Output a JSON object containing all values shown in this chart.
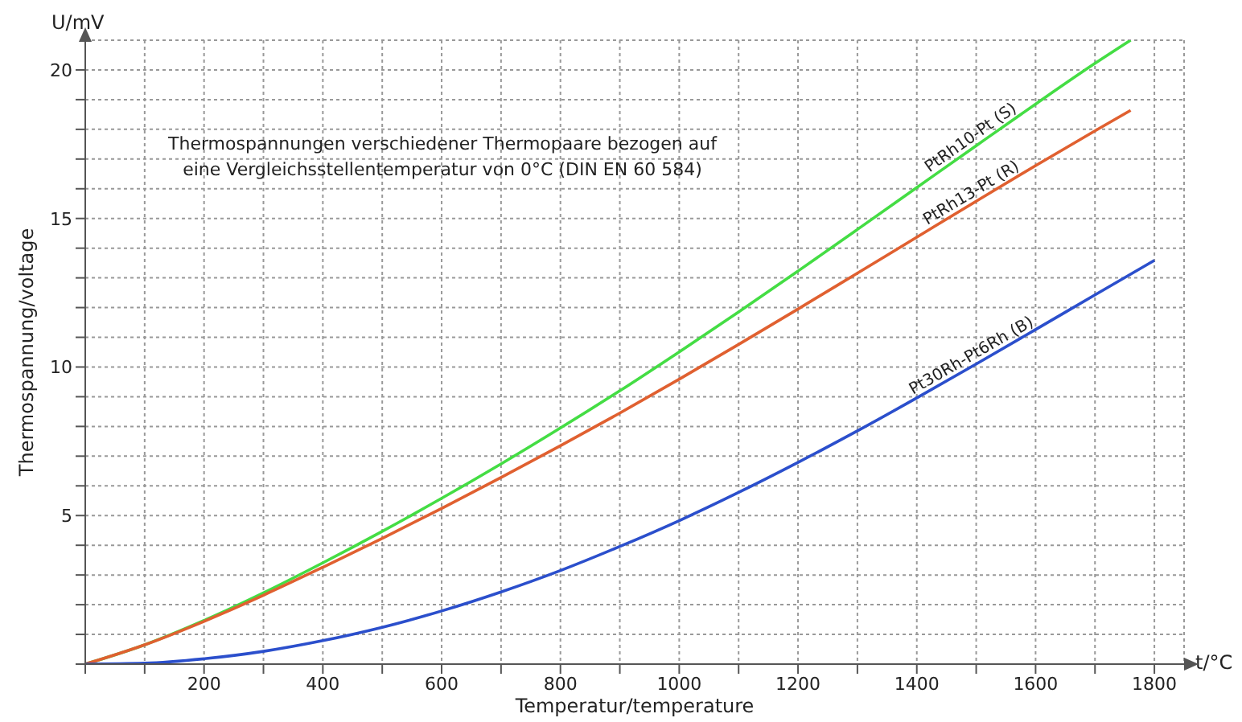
{
  "chart_data": {
    "type": "line",
    "xlabel": "Temperatur/temperature",
    "ylabel": "Thermospannung/voltage",
    "annotations": [
      "Thermospannungen verschiedener Thermopaare bezogen auf eine Vergleichsstellentemperatur von 0°C (DIN EN 60 584)",
      "U/mV",
      "t/°C"
    ],
    "xlim": [
      0,
      1850
    ],
    "ylim": [
      0,
      21
    ],
    "xticks": [
      {
        "value": 0,
        "label": null
      },
      {
        "value": 100,
        "label": null
      },
      200,
      {
        "value": 300,
        "label": null
      },
      400,
      {
        "value": 500,
        "label": null
      },
      600,
      {
        "value": 700,
        "label": null
      },
      800,
      {
        "value": 900,
        "label": null
      },
      1000,
      {
        "value": 1100,
        "label": null
      },
      1200,
      {
        "value": 1300,
        "label": null
      },
      1400,
      {
        "value": 1500,
        "label": null
      },
      1600,
      {
        "value": 1700,
        "label": null
      },
      1800
    ],
    "yticks": [
      {
        "value": 0,
        "label": null
      },
      {
        "value": 1,
        "label": null
      },
      {
        "value": 2,
        "label": null
      },
      {
        "value": 3,
        "label": null
      },
      {
        "value": 4,
        "label": null
      },
      5,
      {
        "value": 6,
        "label": null
      },
      {
        "value": 7,
        "label": null
      },
      {
        "value": 8,
        "label": null
      },
      {
        "value": 9,
        "label": null
      },
      10,
      {
        "value": 11,
        "label": null
      },
      {
        "value": 12,
        "label": null
      },
      {
        "value": 13,
        "label": null
      },
      {
        "value": 14,
        "label": null
      },
      15,
      {
        "value": 16,
        "label": null
      },
      {
        "value": 17,
        "label": null
      },
      {
        "value": 18,
        "label": null
      },
      {
        "value": 19,
        "label": null
      },
      20
    ],
    "grid": true,
    "marker": "none",
    "line_style": "solid",
    "legend": false,
    "series": [
      {
        "name": "PtRh10-Pt (S)",
        "color": "#44dd44",
        "x": [
          0,
          100,
          200,
          300,
          400,
          500,
          600,
          700,
          800,
          900,
          1000,
          1100,
          1200,
          1300,
          1400,
          1500,
          1600,
          1700,
          1760
        ],
        "values": [
          0,
          0.65,
          1.47,
          2.4,
          3.41,
          4.47,
          5.58,
          6.74,
          7.95,
          9.2,
          10.51,
          11.85,
          13.23,
          14.63,
          16.04,
          17.45,
          18.85,
          20.22,
          21.0
        ]
      },
      {
        "name": "PtRh13-Pt (R)",
        "color": "#e06030",
        "x": [
          0,
          100,
          200,
          300,
          400,
          500,
          600,
          700,
          800,
          900,
          1000,
          1100,
          1200,
          1300,
          1400,
          1500,
          1600,
          1700,
          1760
        ],
        "values": [
          0,
          0.65,
          1.44,
          2.32,
          3.26,
          4.23,
          5.24,
          6.28,
          7.35,
          8.45,
          9.59,
          10.76,
          11.95,
          13.16,
          14.37,
          15.58,
          16.78,
          17.95,
          18.64
        ]
      },
      {
        "name": "Pt30Rh-Pt6Rh (B)",
        "color": "#2b4fcc",
        "x": [
          0,
          100,
          200,
          300,
          400,
          500,
          600,
          700,
          800,
          900,
          1000,
          1100,
          1200,
          1300,
          1400,
          1500,
          1600,
          1700,
          1800
        ],
        "values": [
          0,
          0.03,
          0.18,
          0.43,
          0.79,
          1.24,
          1.79,
          2.43,
          3.15,
          3.96,
          4.83,
          5.78,
          6.79,
          7.85,
          8.96,
          10.1,
          11.26,
          12.43,
          13.59
        ]
      }
    ]
  }
}
